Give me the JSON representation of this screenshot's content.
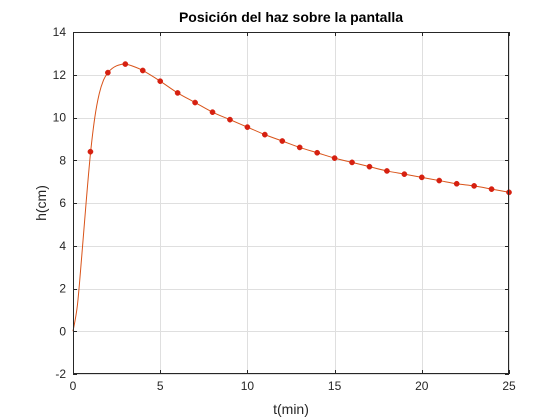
{
  "chart_data": {
    "type": "line",
    "title": "Posición del haz sobre la pantalla",
    "xlabel": "t(min)",
    "ylabel": "h(cm)",
    "xlim": [
      0,
      25
    ],
    "ylim": [
      -2,
      14
    ],
    "xticks": [
      0,
      5,
      10,
      15,
      20,
      25
    ],
    "yticks": [
      -2,
      0,
      2,
      4,
      6,
      8,
      10,
      12,
      14
    ],
    "grid": true,
    "legend": "none",
    "series": [
      {
        "kind": "markers",
        "color": "#d62010",
        "x": [
          1,
          2,
          3,
          4,
          5,
          6,
          7,
          8,
          9,
          10,
          11,
          12,
          13,
          14,
          15,
          16,
          17,
          18,
          19,
          20,
          21,
          22,
          23,
          24,
          25
        ],
        "y": [
          8.4,
          12.1,
          12.5,
          12.2,
          11.7,
          11.15,
          10.7,
          10.25,
          9.9,
          9.55,
          9.2,
          8.9,
          8.6,
          8.35,
          8.1,
          7.9,
          7.7,
          7.5,
          7.35,
          7.2,
          7.05,
          6.9,
          6.8,
          6.65,
          6.5
        ]
      },
      {
        "kind": "fit-curve",
        "color": "#d95319",
        "x": [
          0,
          0.25,
          0.5,
          0.75,
          1,
          1.25,
          1.5,
          1.75,
          2,
          2.25,
          2.5,
          2.75,
          3,
          3.5,
          4,
          5,
          6,
          7,
          8,
          9,
          10,
          11,
          12,
          13,
          14,
          15,
          16,
          17,
          18,
          19,
          20,
          21,
          22,
          23,
          24,
          25
        ],
        "y": [
          0,
          1.2,
          3.5,
          6.0,
          8.3,
          10.0,
          11.1,
          11.75,
          12.1,
          12.3,
          12.42,
          12.48,
          12.5,
          12.38,
          12.2,
          11.7,
          11.15,
          10.7,
          10.25,
          9.9,
          9.55,
          9.2,
          8.9,
          8.6,
          8.35,
          8.1,
          7.9,
          7.7,
          7.5,
          7.35,
          7.2,
          7.05,
          6.9,
          6.8,
          6.65,
          6.5
        ]
      }
    ]
  }
}
